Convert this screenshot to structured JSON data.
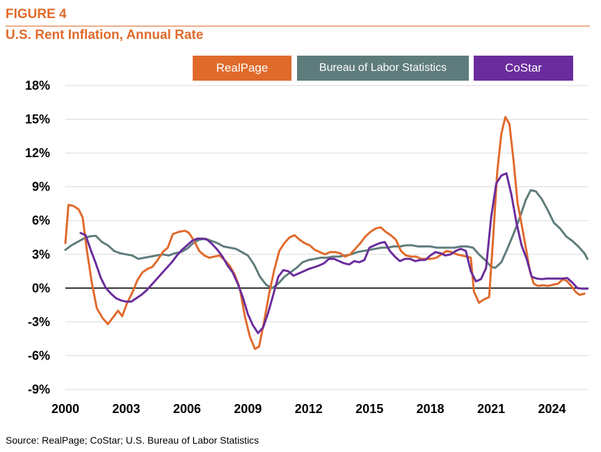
{
  "header": {
    "figure_label": "FIGURE 4",
    "title": "U.S. Rent Inflation, Annual Rate",
    "accent_color": "#E06A2B"
  },
  "source": "Source: RealPage; CoStar; U.S. Bureau of Labor Statistics",
  "chart_data": {
    "type": "line",
    "title": "U.S. Rent Inflation, Annual Rate",
    "xlabel": "",
    "ylabel": "",
    "xlim": [
      2000,
      2025.8
    ],
    "ylim": [
      -9,
      18
    ],
    "x_ticks": [
      "2000",
      "2003",
      "2006",
      "2009",
      "2012",
      "2015",
      "2018",
      "2021",
      "2024"
    ],
    "y_ticks": [
      "18%",
      "15%",
      "12%",
      "9%",
      "6%",
      "3%",
      "0%",
      "-3%",
      "-6%",
      "-9%"
    ],
    "grid": true,
    "zero_line": true,
    "legend_position": "top",
    "series": [
      {
        "name": "RealPage",
        "color": "#E06A2B",
        "points": [
          [
            2000.0,
            4.0
          ],
          [
            2000.15,
            7.4
          ],
          [
            2000.4,
            7.3
          ],
          [
            2000.65,
            7.0
          ],
          [
            2000.85,
            6.3
          ],
          [
            2001.05,
            3.5
          ],
          [
            2001.3,
            0.5
          ],
          [
            2001.55,
            -1.8
          ],
          [
            2001.85,
            -2.7
          ],
          [
            2002.1,
            -3.2
          ],
          [
            2002.35,
            -2.6
          ],
          [
            2002.6,
            -2.0
          ],
          [
            2002.8,
            -2.5
          ],
          [
            2003.05,
            -1.3
          ],
          [
            2003.3,
            -0.4
          ],
          [
            2003.55,
            0.7
          ],
          [
            2003.8,
            1.4
          ],
          [
            2004.05,
            1.7
          ],
          [
            2004.3,
            1.9
          ],
          [
            2004.55,
            2.5
          ],
          [
            2004.8,
            3.2
          ],
          [
            2005.05,
            3.6
          ],
          [
            2005.3,
            4.8
          ],
          [
            2005.6,
            5.0
          ],
          [
            2005.9,
            5.1
          ],
          [
            2006.1,
            4.9
          ],
          [
            2006.35,
            4.2
          ],
          [
            2006.6,
            3.3
          ],
          [
            2006.85,
            2.9
          ],
          [
            2007.1,
            2.7
          ],
          [
            2007.35,
            2.8
          ],
          [
            2007.6,
            2.9
          ],
          [
            2007.85,
            2.5
          ],
          [
            2008.1,
            2.0
          ],
          [
            2008.35,
            1.2
          ],
          [
            2008.6,
            0.0
          ],
          [
            2008.85,
            -2.5
          ],
          [
            2009.1,
            -4.3
          ],
          [
            2009.35,
            -5.4
          ],
          [
            2009.55,
            -5.2
          ],
          [
            2009.8,
            -3.0
          ],
          [
            2010.05,
            -0.5
          ],
          [
            2010.3,
            1.6
          ],
          [
            2010.55,
            3.3
          ],
          [
            2010.8,
            4.0
          ],
          [
            2011.05,
            4.5
          ],
          [
            2011.3,
            4.7
          ],
          [
            2011.55,
            4.3
          ],
          [
            2011.8,
            4.0
          ],
          [
            2012.05,
            3.8
          ],
          [
            2012.3,
            3.4
          ],
          [
            2012.55,
            3.2
          ],
          [
            2012.8,
            3.0
          ],
          [
            2013.05,
            3.2
          ],
          [
            2013.3,
            3.2
          ],
          [
            2013.55,
            3.1
          ],
          [
            2013.8,
            2.8
          ],
          [
            2014.05,
            3.0
          ],
          [
            2014.3,
            3.5
          ],
          [
            2014.55,
            4.0
          ],
          [
            2014.8,
            4.6
          ],
          [
            2015.05,
            5.0
          ],
          [
            2015.3,
            5.3
          ],
          [
            2015.55,
            5.4
          ],
          [
            2015.8,
            5.0
          ],
          [
            2016.05,
            4.7
          ],
          [
            2016.3,
            4.3
          ],
          [
            2016.55,
            3.3
          ],
          [
            2016.8,
            2.9
          ],
          [
            2017.05,
            2.8
          ],
          [
            2017.3,
            2.8
          ],
          [
            2017.55,
            2.6
          ],
          [
            2017.8,
            2.6
          ],
          [
            2018.05,
            2.6
          ],
          [
            2018.3,
            2.7
          ],
          [
            2018.55,
            3.0
          ],
          [
            2018.8,
            3.3
          ],
          [
            2019.05,
            3.2
          ],
          [
            2019.3,
            3.0
          ],
          [
            2019.55,
            2.9
          ],
          [
            2019.8,
            2.8
          ],
          [
            2020.0,
            2.7
          ],
          [
            2020.15,
            -0.3
          ],
          [
            2020.4,
            -1.3
          ],
          [
            2020.65,
            -1.0
          ],
          [
            2020.9,
            -0.8
          ],
          [
            2021.1,
            4.5
          ],
          [
            2021.3,
            10.3
          ],
          [
            2021.5,
            13.7
          ],
          [
            2021.7,
            15.2
          ],
          [
            2021.9,
            14.6
          ],
          [
            2022.1,
            11.4
          ],
          [
            2022.3,
            7.6
          ],
          [
            2022.5,
            5.7
          ],
          [
            2022.7,
            3.7
          ],
          [
            2022.9,
            1.6
          ],
          [
            2023.1,
            0.4
          ],
          [
            2023.3,
            0.2
          ],
          [
            2023.55,
            0.25
          ],
          [
            2023.8,
            0.2
          ],
          [
            2024.05,
            0.3
          ],
          [
            2024.3,
            0.4
          ],
          [
            2024.55,
            0.8
          ],
          [
            2024.75,
            0.6
          ],
          [
            2024.95,
            0.2
          ],
          [
            2025.15,
            -0.3
          ],
          [
            2025.35,
            -0.6
          ],
          [
            2025.6,
            -0.5
          ]
        ]
      },
      {
        "name": "Bureau of Labor Statistics",
        "color": "#5F7C7C",
        "points": [
          [
            2000.0,
            3.4
          ],
          [
            2000.3,
            3.8
          ],
          [
            2000.6,
            4.1
          ],
          [
            2000.9,
            4.4
          ],
          [
            2001.2,
            4.6
          ],
          [
            2001.5,
            4.65
          ],
          [
            2001.8,
            4.1
          ],
          [
            2002.1,
            3.8
          ],
          [
            2002.4,
            3.3
          ],
          [
            2002.7,
            3.1
          ],
          [
            2003.0,
            3.0
          ],
          [
            2003.3,
            2.9
          ],
          [
            2003.6,
            2.6
          ],
          [
            2003.9,
            2.7
          ],
          [
            2004.2,
            2.8
          ],
          [
            2004.5,
            2.9
          ],
          [
            2004.8,
            3.0
          ],
          [
            2005.1,
            2.9
          ],
          [
            2005.4,
            3.1
          ],
          [
            2005.7,
            3.2
          ],
          [
            2006.0,
            3.5
          ],
          [
            2006.3,
            4.0
          ],
          [
            2006.6,
            4.3
          ],
          [
            2006.9,
            4.4
          ],
          [
            2007.2,
            4.2
          ],
          [
            2007.5,
            4.0
          ],
          [
            2007.8,
            3.7
          ],
          [
            2008.1,
            3.6
          ],
          [
            2008.4,
            3.5
          ],
          [
            2008.7,
            3.2
          ],
          [
            2009.0,
            2.9
          ],
          [
            2009.3,
            2.1
          ],
          [
            2009.6,
            1.0
          ],
          [
            2009.9,
            0.3
          ],
          [
            2010.2,
            0.0
          ],
          [
            2010.5,
            0.4
          ],
          [
            2010.8,
            1.0
          ],
          [
            2011.1,
            1.4
          ],
          [
            2011.4,
            1.8
          ],
          [
            2011.7,
            2.3
          ],
          [
            2012.0,
            2.5
          ],
          [
            2012.3,
            2.6
          ],
          [
            2012.6,
            2.7
          ],
          [
            2012.9,
            2.7
          ],
          [
            2013.2,
            2.8
          ],
          [
            2013.5,
            2.8
          ],
          [
            2013.8,
            2.9
          ],
          [
            2014.1,
            3.0
          ],
          [
            2014.4,
            3.2
          ],
          [
            2014.7,
            3.3
          ],
          [
            2015.0,
            3.4
          ],
          [
            2015.3,
            3.5
          ],
          [
            2015.6,
            3.6
          ],
          [
            2015.9,
            3.6
          ],
          [
            2016.2,
            3.7
          ],
          [
            2016.5,
            3.7
          ],
          [
            2016.8,
            3.8
          ],
          [
            2017.1,
            3.8
          ],
          [
            2017.4,
            3.7
          ],
          [
            2017.7,
            3.7
          ],
          [
            2018.0,
            3.7
          ],
          [
            2018.3,
            3.6
          ],
          [
            2018.6,
            3.6
          ],
          [
            2018.9,
            3.6
          ],
          [
            2019.2,
            3.6
          ],
          [
            2019.5,
            3.7
          ],
          [
            2019.8,
            3.7
          ],
          [
            2020.1,
            3.6
          ],
          [
            2020.4,
            3.0
          ],
          [
            2020.7,
            2.5
          ],
          [
            2021.0,
            1.9
          ],
          [
            2021.2,
            1.8
          ],
          [
            2021.5,
            2.3
          ],
          [
            2021.8,
            3.5
          ],
          [
            2022.1,
            4.8
          ],
          [
            2022.4,
            6.2
          ],
          [
            2022.7,
            7.8
          ],
          [
            2022.95,
            8.7
          ],
          [
            2023.2,
            8.6
          ],
          [
            2023.5,
            7.9
          ],
          [
            2023.8,
            6.9
          ],
          [
            2024.1,
            5.8
          ],
          [
            2024.4,
            5.3
          ],
          [
            2024.7,
            4.6
          ],
          [
            2025.0,
            4.2
          ],
          [
            2025.3,
            3.7
          ],
          [
            2025.6,
            3.1
          ],
          [
            2025.75,
            2.6
          ]
        ]
      },
      {
        "name": "CoStar",
        "color": "#6A2C9C",
        "points": [
          [
            2000.75,
            4.9
          ],
          [
            2001.0,
            4.7
          ],
          [
            2001.25,
            3.4
          ],
          [
            2001.5,
            2.2
          ],
          [
            2001.75,
            0.9
          ],
          [
            2002.0,
            0.0
          ],
          [
            2002.25,
            -0.5
          ],
          [
            2002.5,
            -0.9
          ],
          [
            2002.75,
            -1.1
          ],
          [
            2003.0,
            -1.2
          ],
          [
            2003.25,
            -1.2
          ],
          [
            2003.5,
            -0.9
          ],
          [
            2003.75,
            -0.6
          ],
          [
            2004.0,
            -0.2
          ],
          [
            2004.25,
            0.3
          ],
          [
            2004.5,
            0.8
          ],
          [
            2004.75,
            1.3
          ],
          [
            2005.0,
            1.8
          ],
          [
            2005.25,
            2.3
          ],
          [
            2005.5,
            2.9
          ],
          [
            2005.75,
            3.4
          ],
          [
            2006.0,
            3.8
          ],
          [
            2006.25,
            4.2
          ],
          [
            2006.5,
            4.4
          ],
          [
            2006.75,
            4.4
          ],
          [
            2007.0,
            4.3
          ],
          [
            2007.25,
            3.9
          ],
          [
            2007.5,
            3.4
          ],
          [
            2007.75,
            2.8
          ],
          [
            2008.0,
            2.0
          ],
          [
            2008.25,
            1.4
          ],
          [
            2008.5,
            0.4
          ],
          [
            2008.75,
            -0.8
          ],
          [
            2009.0,
            -2.3
          ],
          [
            2009.25,
            -3.3
          ],
          [
            2009.5,
            -4.0
          ],
          [
            2009.75,
            -3.5
          ],
          [
            2010.0,
            -2.2
          ],
          [
            2010.25,
            -0.6
          ],
          [
            2010.5,
            1.0
          ],
          [
            2010.75,
            1.6
          ],
          [
            2011.0,
            1.5
          ],
          [
            2011.25,
            1.1
          ],
          [
            2011.5,
            1.3
          ],
          [
            2011.75,
            1.5
          ],
          [
            2012.0,
            1.7
          ],
          [
            2012.25,
            1.85
          ],
          [
            2012.5,
            2.0
          ],
          [
            2012.75,
            2.2
          ],
          [
            2013.0,
            2.6
          ],
          [
            2013.25,
            2.6
          ],
          [
            2013.5,
            2.4
          ],
          [
            2013.75,
            2.2
          ],
          [
            2014.0,
            2.1
          ],
          [
            2014.25,
            2.4
          ],
          [
            2014.5,
            2.3
          ],
          [
            2014.75,
            2.5
          ],
          [
            2015.0,
            3.6
          ],
          [
            2015.25,
            3.8
          ],
          [
            2015.5,
            4.0
          ],
          [
            2015.75,
            4.1
          ],
          [
            2016.0,
            3.3
          ],
          [
            2016.25,
            2.8
          ],
          [
            2016.5,
            2.4
          ],
          [
            2016.75,
            2.6
          ],
          [
            2017.0,
            2.6
          ],
          [
            2017.25,
            2.4
          ],
          [
            2017.5,
            2.5
          ],
          [
            2017.75,
            2.5
          ],
          [
            2018.0,
            2.9
          ],
          [
            2018.25,
            3.2
          ],
          [
            2018.5,
            3.1
          ],
          [
            2018.75,
            2.9
          ],
          [
            2019.0,
            3.0
          ],
          [
            2019.25,
            3.3
          ],
          [
            2019.5,
            3.5
          ],
          [
            2019.75,
            3.3
          ],
          [
            2020.0,
            1.5
          ],
          [
            2020.25,
            0.6
          ],
          [
            2020.5,
            0.8
          ],
          [
            2020.75,
            1.8
          ],
          [
            2021.0,
            6.3
          ],
          [
            2021.25,
            9.3
          ],
          [
            2021.5,
            10.0
          ],
          [
            2021.75,
            10.2
          ],
          [
            2022.0,
            8.3
          ],
          [
            2022.25,
            5.8
          ],
          [
            2022.5,
            3.8
          ],
          [
            2022.75,
            2.6
          ],
          [
            2023.0,
            1.0
          ],
          [
            2023.25,
            0.85
          ],
          [
            2023.5,
            0.8
          ],
          [
            2023.75,
            0.85
          ],
          [
            2024.0,
            0.85
          ],
          [
            2024.25,
            0.85
          ],
          [
            2024.5,
            0.85
          ],
          [
            2024.75,
            0.9
          ],
          [
            2025.0,
            0.5
          ],
          [
            2025.25,
            0.0
          ],
          [
            2025.5,
            -0.05
          ],
          [
            2025.75,
            -0.05
          ]
        ]
      }
    ]
  }
}
